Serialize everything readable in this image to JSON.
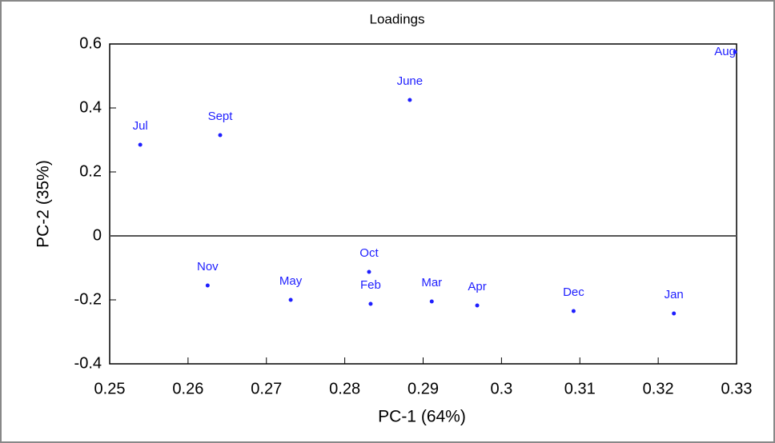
{
  "chart_data": {
    "type": "scatter",
    "title": "Loadings",
    "x_label": "PC-1 (64%)",
    "y_label": "PC-2 (35%)",
    "point_labels": [
      "Jul",
      "Sept",
      "June",
      "Aug",
      "Nov",
      "May",
      "Oct",
      "Feb",
      "Mar",
      "Apr",
      "Dec",
      "Jan"
    ],
    "x": [
      0.2539,
      0.2641,
      0.2883,
      0.3298,
      0.2625,
      0.2731,
      0.2831,
      0.2833,
      0.2911,
      0.2969,
      0.3092,
      0.322
    ],
    "values": [
      0.285,
      0.315,
      0.425,
      0.575,
      -0.155,
      -0.2,
      -0.1125,
      -0.2125,
      -0.205,
      -0.2175,
      -0.235,
      -0.2425
    ],
    "color": "#1f1fff",
    "xlim": [
      0.25,
      0.33
    ],
    "xticks": [
      0.25,
      0.26,
      0.27,
      0.28,
      0.29,
      0.3,
      0.31,
      0.32,
      0.33
    ],
    "ylim": [
      -0.4,
      0.6
    ],
    "yticks": [
      -0.4,
      -0.2,
      0,
      0.2,
      0.4,
      0.6
    ],
    "zero_line": true
  }
}
